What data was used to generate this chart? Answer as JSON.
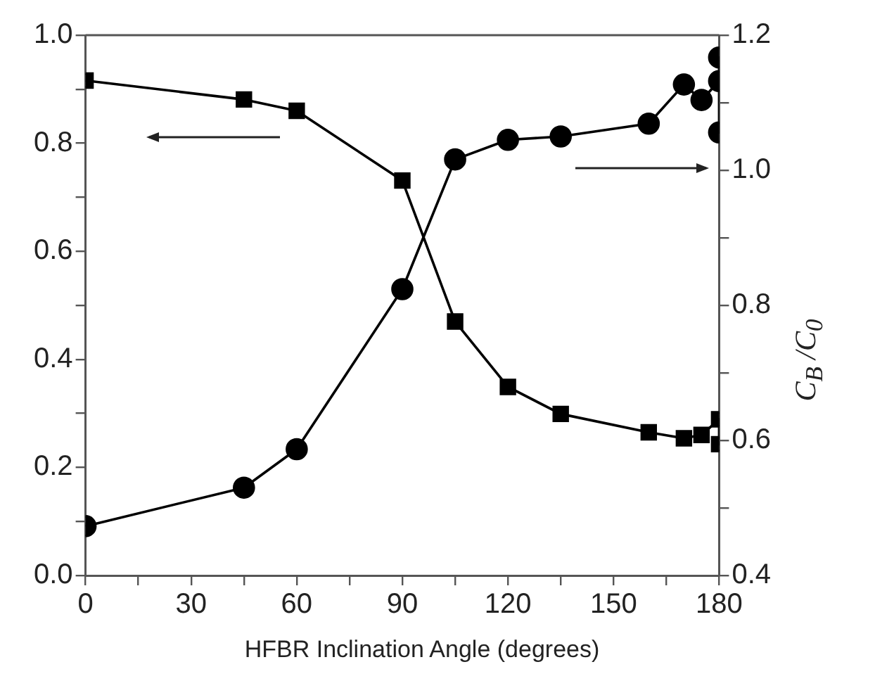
{
  "chart_data": {
    "type": "line",
    "xlabel": "HFBR Inclination Angle (degrees)",
    "y2label": "C$_{B}$ /C$_{0}$",
    "xlim": [
      0,
      180
    ],
    "xticks": [
      0,
      {
        "value": 15,
        "label": null
      },
      30,
      {
        "value": 45,
        "label": null
      },
      60,
      {
        "value": 75,
        "label": null
      },
      90,
      {
        "value": 105,
        "label": null
      },
      120,
      {
        "value": 135,
        "label": null
      },
      150,
      {
        "value": 165,
        "label": null
      },
      180
    ],
    "ylim": [
      0,
      1
    ],
    "yticks": [
      {
        "value": 0,
        "label": "0.0"
      },
      {
        "value": 0.1,
        "label": null
      },
      0.2,
      {
        "value": 0.3,
        "label": null
      },
      0.4,
      {
        "value": 0.5,
        "label": null
      },
      0.6,
      {
        "value": 0.7,
        "label": null
      },
      0.8,
      {
        "value": 0.9,
        "label": null
      },
      {
        "value": 1,
        "label": "1.0"
      }
    ],
    "y2lim": [
      0.4,
      1.2
    ],
    "y2ticks": [
      0.4,
      {
        "value": 0.5,
        "label": null
      },
      0.6,
      {
        "value": 0.7,
        "label": null
      },
      0.8,
      {
        "value": 0.9,
        "label": null
      },
      {
        "value": 1,
        "label": "1.0"
      },
      {
        "value": 1.1,
        "label": null
      },
      1.2
    ],
    "series": [
      {
        "color": "#000000",
        "marker": "square",
        "axis": "y",
        "x": [
          0,
          45,
          60,
          90,
          105,
          120,
          135,
          160,
          170,
          175,
          180,
          180
        ],
        "values": [
          0.916,
          0.881,
          0.86,
          0.731,
          0.47,
          0.349,
          0.299,
          0.265,
          0.254,
          0.26,
          0.289,
          0.243
        ]
      },
      {
        "color": "#000000",
        "marker": "circle",
        "axis": "y2",
        "x": [
          0,
          45,
          60,
          90,
          105,
          120,
          135,
          160,
          170,
          175,
          180,
          180,
          180
        ],
        "values": [
          0.473,
          0.53,
          0.587,
          0.824,
          1.016,
          1.045,
          1.05,
          1.069,
          1.127,
          1.104,
          1.132,
          1.167,
          1.056
        ]
      }
    ]
  }
}
